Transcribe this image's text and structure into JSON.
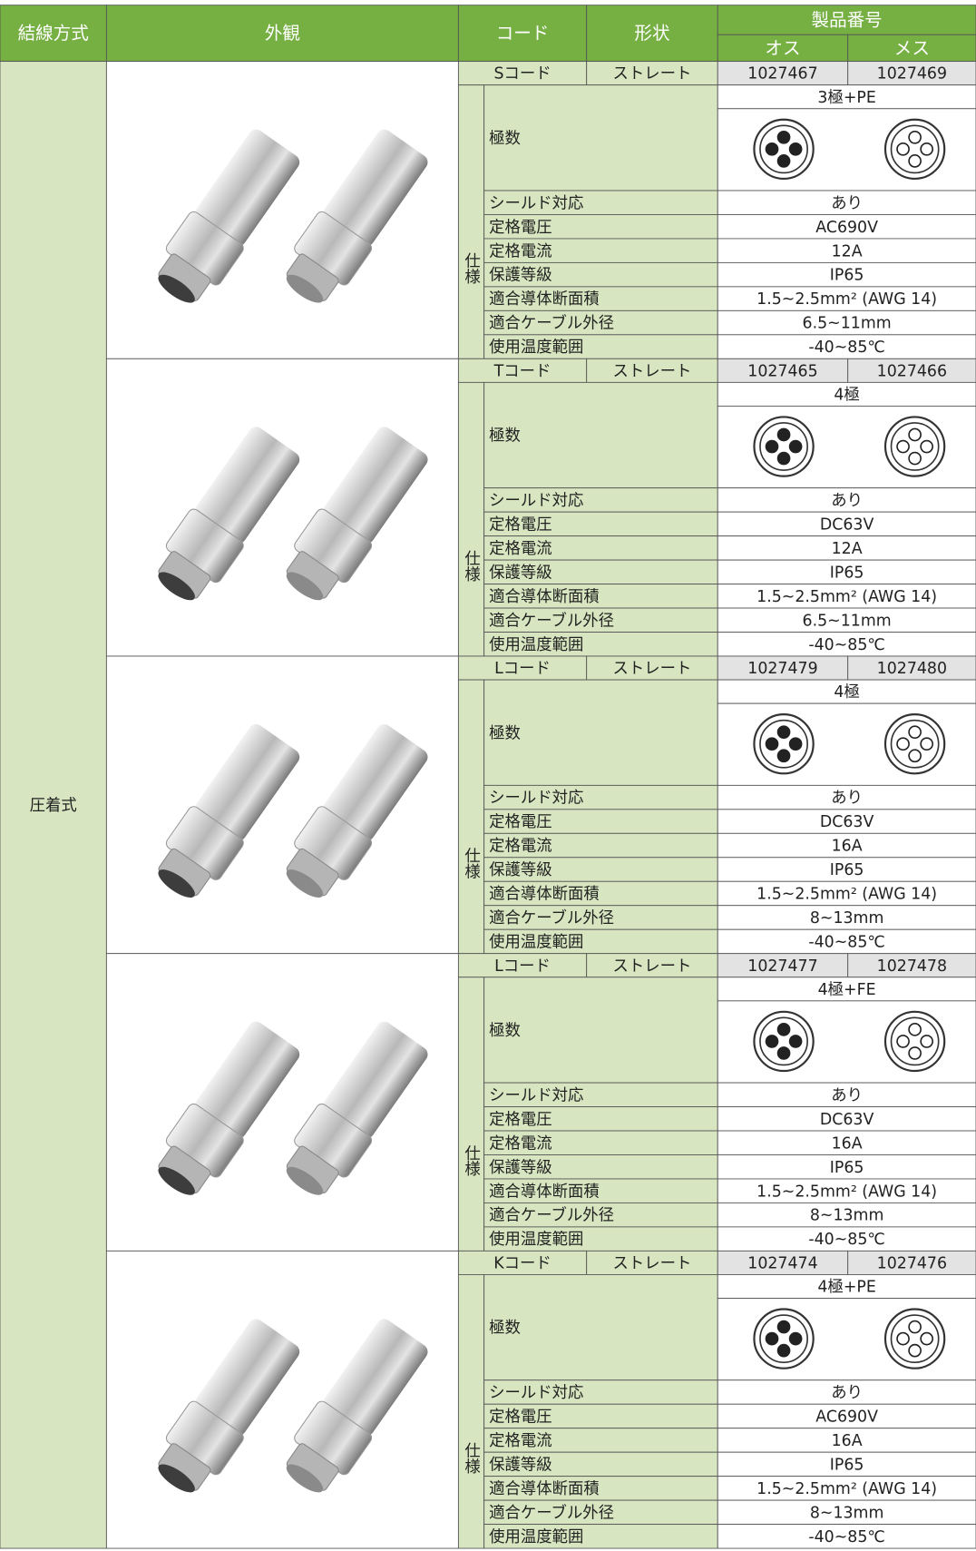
{
  "header": {
    "wiring": "結線方式",
    "appearance": "外観",
    "code": "コード",
    "shape": "形状",
    "part_number": "製品番号",
    "male": "オス",
    "female": "メス"
  },
  "wiring_method": "圧着式",
  "spec_side_label": "仕様",
  "poles_label": "極数",
  "spec_labels": [
    "シールド対応",
    "定格電圧",
    "定格電流",
    "保護等級",
    "適合導体断面積",
    "適合ケーブル外径",
    "使用温度範囲"
  ],
  "blocks": [
    {
      "code": "Sコード",
      "shape": "ストレート",
      "male": "1027467",
      "female": "1027469",
      "poles": "3極+PE",
      "specs": [
        "あり",
        "AC690V",
        "12A",
        "IP65",
        "1.5~2.5mm² (AWG 14)",
        "6.5~11mm",
        "-40~85℃"
      ]
    },
    {
      "code": "Tコード",
      "shape": "ストレート",
      "male": "1027465",
      "female": "1027466",
      "poles": "4極",
      "specs": [
        "あり",
        "DC63V",
        "12A",
        "IP65",
        "1.5~2.5mm² (AWG 14)",
        "6.5~11mm",
        "-40~85℃"
      ]
    },
    {
      "code": "Lコード",
      "shape": "ストレート",
      "male": "1027479",
      "female": "1027480",
      "poles": "4極",
      "specs": [
        "あり",
        "DC63V",
        "16A",
        "IP65",
        "1.5~2.5mm² (AWG 14)",
        "8~13mm",
        "-40~85℃"
      ]
    },
    {
      "code": "Lコード",
      "shape": "ストレート",
      "male": "1027477",
      "female": "1027478",
      "poles": "4極+FE",
      "specs": [
        "あり",
        "DC63V",
        "16A",
        "IP65",
        "1.5~2.5mm² (AWG 14)",
        "8~13mm",
        "-40~85℃"
      ]
    },
    {
      "code": "Kコード",
      "shape": "ストレート",
      "male": "1027474",
      "female": "1027476",
      "poles": "4極+PE",
      "specs": [
        "あり",
        "AC690V",
        "16A",
        "IP65",
        "1.5~2.5mm² (AWG 14)",
        "8~13mm",
        "-40~85℃"
      ]
    }
  ]
}
